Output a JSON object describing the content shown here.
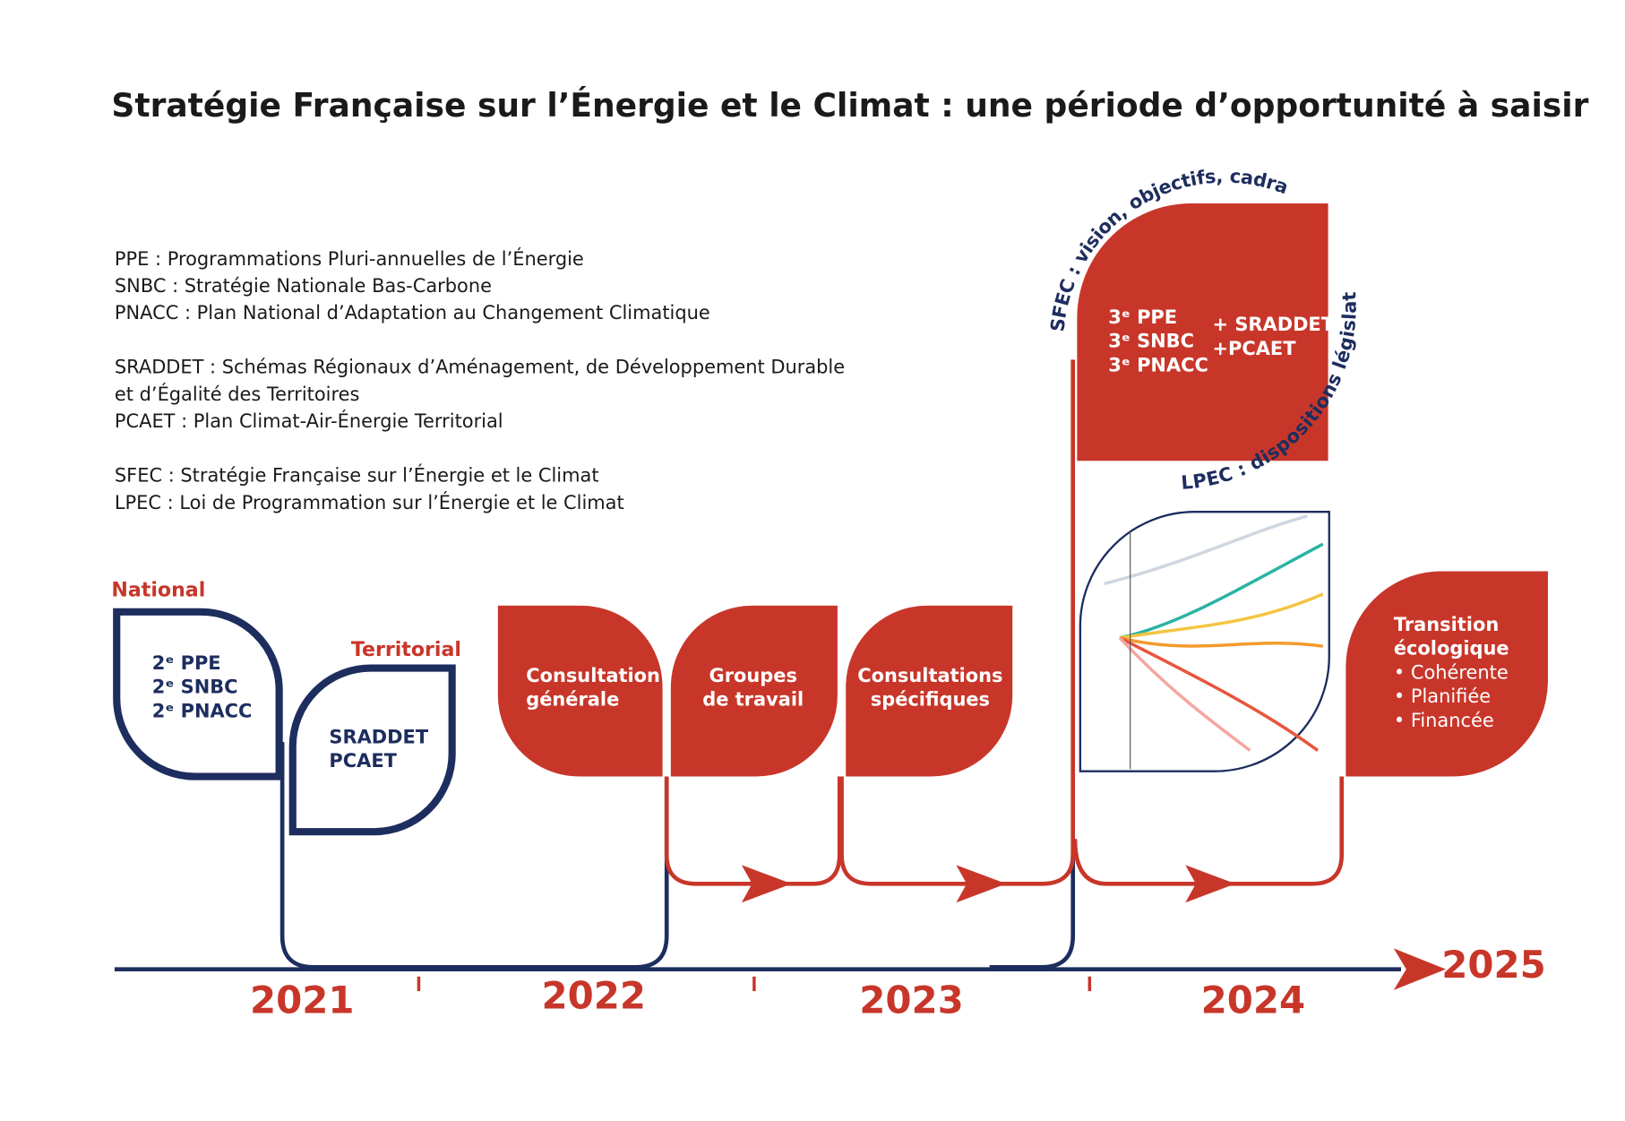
{
  "title": "Stratégie Française sur l’Énergie et le Climat : une période d’opportunité à saisir",
  "glossary": [
    [
      "PPE : Programmations Pluri-annuelles de l’Énergie",
      "SNBC : Stratégie Nationale Bas-Carbone",
      "PNACC : Plan National d’Adaptation au Changement Climatique"
    ],
    [
      "SRADDET : Schémas Régionaux d’Aménagement, de Développement Durable",
      "et d’Égalité des Territoires",
      "PCAET : Plan Climat-Air-Énergie Territorial"
    ],
    [
      "SFEC : Stratégie Française sur l’Énergie et le Climat",
      "LPEC : Loi de Programmation sur l’Énergie et le Climat"
    ]
  ],
  "levels": {
    "national": "National",
    "territorial": "Territorial"
  },
  "boxes": {
    "national": [
      "2ᵉ PPE",
      "2ᵉ SNBC",
      "2ᵉ PNACC"
    ],
    "territorial": [
      "SRADDET",
      "PCAET"
    ],
    "consultation_generale": [
      "Consultation",
      "générale"
    ],
    "groupes_de_travail": [
      "Groupes",
      "de travail"
    ],
    "consultations_specifiques": [
      "Consultations",
      "spécifiques"
    ],
    "sfec_left": [
      "3ᵉ PPE",
      "3ᵉ SNBC",
      "3ᵉ PNACC"
    ],
    "sfec_right": [
      "+ SRADDET",
      "+PCAET"
    ],
    "transition_title": [
      "Transition",
      "écologique"
    ],
    "transition_bullets": [
      "• Cohérente",
      "• Planifiée",
      "• Financée"
    ]
  },
  "arcs": {
    "sfec": "SFEC : vision, objectifs, cadrage",
    "lpec": "LPEC : dispositions législatives"
  },
  "years": [
    "2021",
    "2022",
    "2023",
    "2024",
    "2025"
  ]
}
